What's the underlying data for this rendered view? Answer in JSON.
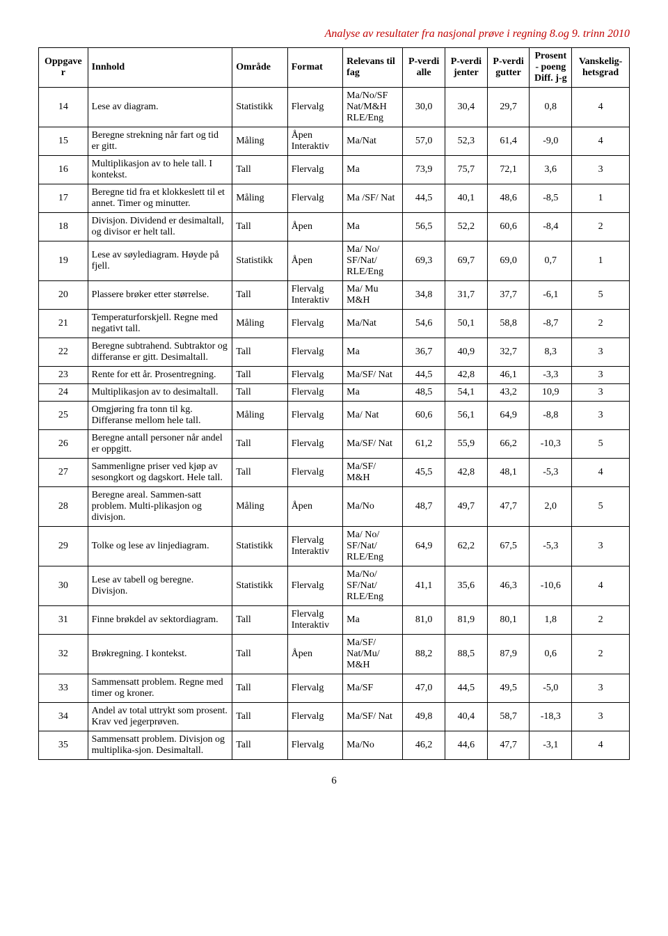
{
  "doc_title": "Analyse av resultater fra nasjonal prøve i regning 8.og 9. trinn 2010",
  "page_number": "6",
  "headers": {
    "oppgaver": "Oppgaver",
    "innhold": "Innhold",
    "omrade": "Område",
    "format": "Format",
    "relevans": "Relevans til fag",
    "p_alle": "P-verdi alle",
    "p_jenter": "P-verdi jenter",
    "p_gutter": "P-verdi gutter",
    "prosent": "Prosent - poeng Diff. j-g",
    "vansk": "Vanskelig-hetsgrad"
  },
  "rows": [
    {
      "opp": "14",
      "inn": "Lese av diagram.",
      "omr": "Statistikk",
      "fmt": "Flervalg",
      "rel": "Ma/No/SF Nat/M&H RLE/Eng",
      "a": "30,0",
      "j": "30,4",
      "g": "29,7",
      "d": "0,8",
      "v": "4"
    },
    {
      "opp": "15",
      "inn": "Beregne strekning når fart og tid er gitt.",
      "omr": "Måling",
      "fmt": "Åpen Interaktiv",
      "rel": "Ma/Nat",
      "a": "57,0",
      "j": "52,3",
      "g": "61,4",
      "d": "-9,0",
      "v": "4"
    },
    {
      "opp": "16",
      "inn": "Multiplikasjon av to hele tall. I kontekst.",
      "omr": "Tall",
      "fmt": "Flervalg",
      "rel": "Ma",
      "a": "73,9",
      "j": "75,7",
      "g": "72,1",
      "d": "3,6",
      "v": "3"
    },
    {
      "opp": "17",
      "inn": "Beregne tid fra et klokkeslett til et annet. Timer og minutter.",
      "omr": "Måling",
      "fmt": "Flervalg",
      "rel": "Ma /SF/ Nat",
      "a": "44,5",
      "j": "40,1",
      "g": "48,6",
      "d": "-8,5",
      "v": "1"
    },
    {
      "opp": "18",
      "inn": "Divisjon. Dividend er desimaltall, og divisor er helt tall.",
      "omr": "Tall",
      "fmt": "Åpen",
      "rel": "Ma",
      "a": "56,5",
      "j": "52,2",
      "g": "60,6",
      "d": "-8,4",
      "v": "2"
    },
    {
      "opp": "19",
      "inn": "Lese av søylediagram. Høyde på fjell.",
      "omr": "Statistikk",
      "fmt": "Åpen",
      "rel": "Ma/ No/ SF/Nat/ RLE/Eng",
      "a": "69,3",
      "j": "69,7",
      "g": "69,0",
      "d": "0,7",
      "v": "1"
    },
    {
      "opp": "20",
      "inn": "Plassere brøker etter størrelse.",
      "omr": "Tall",
      "fmt": "Flervalg Interaktiv",
      "rel": "Ma/ Mu M&H",
      "a": "34,8",
      "j": "31,7",
      "g": "37,7",
      "d": "-6,1",
      "v": "5"
    },
    {
      "opp": "21",
      "inn": "Temperaturforskjell. Regne med negativt tall.",
      "omr": "Måling",
      "fmt": "Flervalg",
      "rel": "Ma/Nat",
      "a": "54,6",
      "j": "50,1",
      "g": "58,8",
      "d": "-8,7",
      "v": "2"
    },
    {
      "opp": "22",
      "inn": "Beregne subtrahend. Subtraktor og differanse er gitt. Desimaltall.",
      "omr": "Tall",
      "fmt": "Flervalg",
      "rel": "Ma",
      "a": "36,7",
      "j": "40,9",
      "g": "32,7",
      "d": "8,3",
      "v": "3"
    },
    {
      "opp": "23",
      "inn": "Rente for ett år. Prosentregning.",
      "omr": "Tall",
      "fmt": "Flervalg",
      "rel": "Ma/SF/ Nat",
      "a": "44,5",
      "j": "42,8",
      "g": "46,1",
      "d": "-3,3",
      "v": "3"
    },
    {
      "opp": "24",
      "inn": "Multiplikasjon av to desimaltall.",
      "omr": "Tall",
      "fmt": "Flervalg",
      "rel": "Ma",
      "a": "48,5",
      "j": "54,1",
      "g": "43,2",
      "d": "10,9",
      "v": "3"
    },
    {
      "opp": "25",
      "inn": "Omgjøring fra tonn til kg. Differanse mellom hele tall.",
      "omr": "Måling",
      "fmt": "Flervalg",
      "rel": "Ma/ Nat",
      "a": "60,6",
      "j": "56,1",
      "g": "64,9",
      "d": "-8,8",
      "v": "3"
    },
    {
      "opp": "26",
      "inn": "Beregne antall personer når andel er oppgitt.",
      "omr": "Tall",
      "fmt": "Flervalg",
      "rel": "Ma/SF/ Nat",
      "a": "61,2",
      "j": "55,9",
      "g": "66,2",
      "d": "-10,3",
      "v": "5"
    },
    {
      "opp": "27",
      "inn": "Sammenligne priser ved kjøp av sesongkort og dagskort. Hele tall.",
      "omr": "Tall",
      "fmt": "Flervalg",
      "rel": "Ma/SF/ M&H",
      "a": "45,5",
      "j": "42,8",
      "g": "48,1",
      "d": "-5,3",
      "v": "4"
    },
    {
      "opp": "28",
      "inn": "Beregne areal. Sammen-satt problem. Multi-plikasjon og divisjon.",
      "omr": "Måling",
      "fmt": "Åpen",
      "rel": "Ma/No",
      "a": "48,7",
      "j": "49,7",
      "g": "47,7",
      "d": "2,0",
      "v": "5"
    },
    {
      "opp": "29",
      "inn": "Tolke og lese av linjediagram.",
      "omr": "Statistikk",
      "fmt": "Flervalg Interaktiv",
      "rel": "Ma/ No/ SF/Nat/ RLE/Eng",
      "a": "64,9",
      "j": "62,2",
      "g": "67,5",
      "d": "-5,3",
      "v": "3"
    },
    {
      "opp": "30",
      "inn": "Lese av tabell og beregne. Divisjon.",
      "omr": "Statistikk",
      "fmt": "Flervalg",
      "rel": "Ma/No/ SF/Nat/ RLE/Eng",
      "a": "41,1",
      "j": "35,6",
      "g": "46,3",
      "d": "-10,6",
      "v": "4"
    },
    {
      "opp": "31",
      "inn": "Finne brøkdel av sektordiagram.",
      "omr": "Tall",
      "fmt": "Flervalg Interaktiv",
      "rel": "Ma",
      "a": "81,0",
      "j": "81,9",
      "g": "80,1",
      "d": "1,8",
      "v": "2"
    },
    {
      "opp": "32",
      "inn": "Brøkregning. I kontekst.",
      "omr": "Tall",
      "fmt": "Åpen",
      "rel": "Ma/SF/ Nat/Mu/ M&H",
      "a": "88,2",
      "j": "88,5",
      "g": "87,9",
      "d": "0,6",
      "v": "2"
    },
    {
      "opp": "33",
      "inn": "Sammensatt problem. Regne med timer og kroner.",
      "omr": "Tall",
      "fmt": "Flervalg",
      "rel": "Ma/SF",
      "a": "47,0",
      "j": "44,5",
      "g": "49,5",
      "d": "-5,0",
      "v": "3"
    },
    {
      "opp": "34",
      "inn": "Andel av total uttrykt som prosent. Krav ved jegerprøven.",
      "omr": "Tall",
      "fmt": "Flervalg",
      "rel": "Ma/SF/ Nat",
      "a": "49,8",
      "j": "40,4",
      "g": "58,7",
      "d": "-18,3",
      "v": "3"
    },
    {
      "opp": "35",
      "inn": "Sammensatt problem. Divisjon og multiplika-sjon. Desimaltall.",
      "omr": "Tall",
      "fmt": "Flervalg",
      "rel": "Ma/No",
      "a": "46,2",
      "j": "44,6",
      "g": "47,7",
      "d": "-3,1",
      "v": "4"
    }
  ]
}
